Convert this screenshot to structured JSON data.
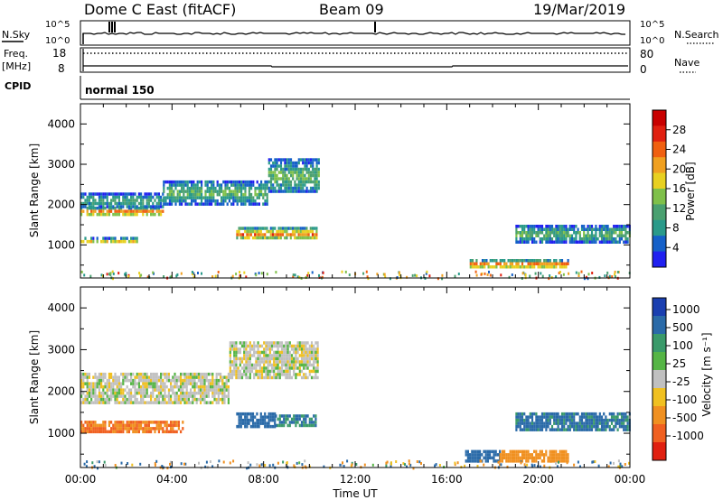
{
  "header": {
    "station": "Dome C East (fitACF)",
    "beam": "Beam 09",
    "date": "19/Mar/2019"
  },
  "status_panel": {
    "nsky_label": "N.Sky",
    "nsearch_label": "N.Search",
    "freq_label": "Freq.",
    "freq_unit": "[MHz]",
    "nave_label": "Nave",
    "cpid_label": "CPID",
    "cpid_value": "normal 150",
    "noise_ticks": [
      "10^5",
      "10^0"
    ],
    "noise_ticks_right": [
      "10^5",
      "10^0"
    ],
    "freq_ticks": [
      "18",
      "8"
    ],
    "nave_ticks": [
      "80",
      "0"
    ]
  },
  "chart_data": [
    {
      "type": "heatmap",
      "panel": "power",
      "xlabel": "",
      "ylabel": "Slant Range [km]",
      "xlim": [
        0,
        24
      ],
      "ylim": [
        180,
        4500
      ],
      "y_ticks": [
        1000,
        2000,
        3000,
        4000
      ],
      "colorbar": {
        "label": "Power [dB]",
        "range": [
          0,
          32
        ],
        "ticks": [
          "28",
          "24",
          "20",
          "16",
          "12",
          "8",
          "4"
        ],
        "colors": [
          "#2020f0",
          "#1560c8",
          "#2a9a8a",
          "#4aa070",
          "#7fc04a",
          "#e8d020",
          "#f0a020",
          "#f06010",
          "#e02010",
          "#c80000"
        ]
      },
      "echo_regions": [
        {
          "t": [
            0.0,
            3.6
          ],
          "r": [
            1750,
            1950
          ],
          "power": 24
        },
        {
          "t": [
            0.0,
            3.6
          ],
          "r": [
            1950,
            2300
          ],
          "power": 10
        },
        {
          "t": [
            0.0,
            2.5
          ],
          "r": [
            1050,
            1200
          ],
          "power": 16
        },
        {
          "t": [
            3.6,
            8.2
          ],
          "r": [
            2050,
            2600
          ],
          "power": 12
        },
        {
          "t": [
            8.2,
            10.4
          ],
          "r": [
            2300,
            3150
          ],
          "power": 12
        },
        {
          "t": [
            6.8,
            10.3
          ],
          "r": [
            1150,
            1450
          ],
          "power": 22
        },
        {
          "t": [
            17.0,
            21.3
          ],
          "r": [
            450,
            650
          ],
          "power": 24
        },
        {
          "t": [
            19.0,
            24.0
          ],
          "r": [
            1100,
            1500
          ],
          "power": 12
        }
      ]
    },
    {
      "type": "heatmap",
      "panel": "velocity",
      "xlabel": "Time UT",
      "ylabel": "Slant Range [km]",
      "xlim": [
        0,
        24
      ],
      "ylim": [
        180,
        4500
      ],
      "y_ticks": [
        1000,
        2000,
        3000,
        4000
      ],
      "x_ticks": [
        "00:00",
        "04:00",
        "08:00",
        "12:00",
        "16:00",
        "20:00",
        "00:00"
      ],
      "colorbar": {
        "label": "Velocity [m s⁻¹]",
        "ticks": [
          "1000",
          "500",
          "100",
          "25",
          "-25",
          "-100",
          "-500",
          "-1000"
        ],
        "colors": [
          "#1a3fb0",
          "#2a6aa8",
          "#3a9a6a",
          "#55b545",
          "#c0c0c0",
          "#f0c020",
          "#f09020",
          "#f06020",
          "#e02010"
        ]
      },
      "echo_regions": [
        {
          "t": [
            0.0,
            6.5
          ],
          "r": [
            1700,
            2450
          ],
          "velocity": 0
        },
        {
          "t": [
            6.5,
            10.4
          ],
          "r": [
            2300,
            3200
          ],
          "velocity": 0
        },
        {
          "t": [
            0.0,
            4.5
          ],
          "r": [
            1050,
            1300
          ],
          "velocity": -300
        },
        {
          "t": [
            6.8,
            8.5
          ],
          "r": [
            1150,
            1500
          ],
          "velocity": 300
        },
        {
          "t": [
            8.5,
            10.3
          ],
          "r": [
            1150,
            1450
          ],
          "velocity": 100
        },
        {
          "t": [
            16.8,
            18.3
          ],
          "r": [
            300,
            600
          ],
          "velocity": 150
        },
        {
          "t": [
            18.3,
            21.3
          ],
          "r": [
            300,
            600
          ],
          "velocity": -200
        },
        {
          "t": [
            19.0,
            24.0
          ],
          "r": [
            1100,
            1500
          ],
          "velocity": 120
        }
      ]
    }
  ]
}
